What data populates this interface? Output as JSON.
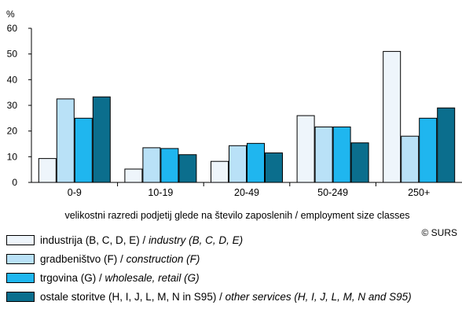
{
  "chart_data": {
    "type": "bar",
    "ylabel": "%",
    "ylim": [
      0,
      60
    ],
    "yticks": [
      "0",
      "10",
      "20",
      "30",
      "40",
      "50",
      "60"
    ],
    "xlabel": "velikostni razredi podjetij glede na število zaposlenih / employment size classes",
    "categories": [
      "0-9",
      "10-19",
      "20-49",
      "50-249",
      "250+"
    ],
    "grid": false,
    "legend_placement": "bottom",
    "series": [
      {
        "name_plain": "industrija (B, C, D, E) / ",
        "name_italic": "industry (B, C, D, E)",
        "color": "#eef5fb",
        "values": [
          9.3,
          5.2,
          8.2,
          26,
          51
        ]
      },
      {
        "name_plain": "gradbeništvo (F) / ",
        "name_italic": "construction (F)",
        "color": "#b9e1f7",
        "values": [
          32.5,
          13.5,
          14.3,
          21.6,
          18
        ]
      },
      {
        "name_plain": "trgovina (G) / ",
        "name_italic": "wholesale, retail (G)",
        "color": "#1fb6ef",
        "values": [
          25,
          13.2,
          15.2,
          21.6,
          25
        ]
      },
      {
        "name_plain": "ostale storitve (H, I, J, L, M, N in S95) / ",
        "name_italic": "other services (H, I, J, L, M, N and S95)",
        "color": "#0b6e8d",
        "values": [
          33.3,
          10.8,
          11.5,
          15.4,
          29
        ]
      }
    ]
  },
  "credit": "© SURS"
}
